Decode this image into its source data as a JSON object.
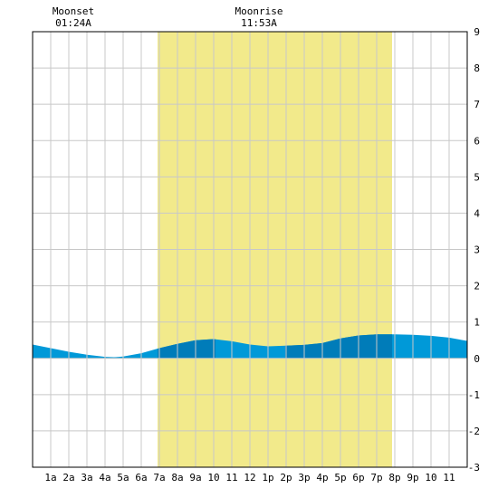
{
  "chart_data": {
    "type": "area",
    "title": "",
    "xlabel": "",
    "ylabel": "",
    "xlim": [
      0,
      24
    ],
    "ylim": [
      -3,
      9
    ],
    "y_ticks": [
      9,
      8,
      7,
      6,
      5,
      4,
      3,
      2,
      1,
      0,
      -1,
      -2,
      -3
    ],
    "x_ticks": [
      {
        "h": 1,
        "label": "1a"
      },
      {
        "h": 2,
        "label": "2a"
      },
      {
        "h": 3,
        "label": "3a"
      },
      {
        "h": 4,
        "label": "4a"
      },
      {
        "h": 5,
        "label": "5a"
      },
      {
        "h": 6,
        "label": "6a"
      },
      {
        "h": 7,
        "label": "7a"
      },
      {
        "h": 8,
        "label": "8a"
      },
      {
        "h": 9,
        "label": "9a"
      },
      {
        "h": 10,
        "label": "10"
      },
      {
        "h": 11,
        "label": "11"
      },
      {
        "h": 12,
        "label": "12"
      },
      {
        "h": 13,
        "label": "1p"
      },
      {
        "h": 14,
        "label": "2p"
      },
      {
        "h": 15,
        "label": "3p"
      },
      {
        "h": 16,
        "label": "4p"
      },
      {
        "h": 17,
        "label": "5p"
      },
      {
        "h": 18,
        "label": "6p"
      },
      {
        "h": 19,
        "label": "7p"
      },
      {
        "h": 20,
        "label": "8p"
      },
      {
        "h": 21,
        "label": "9p"
      },
      {
        "h": 22,
        "label": "10"
      },
      {
        "h": 23,
        "label": "11"
      }
    ],
    "daylight": {
      "start": 6.9,
      "end": 19.85
    },
    "dark_bands": [
      [
        6.9,
        10.1
      ],
      [
        13.95,
        19.85
      ]
    ],
    "grid": true,
    "series": [
      {
        "x": [
          0,
          1,
          2,
          3,
          4,
          4.5,
          5,
          6,
          7,
          8,
          9,
          10,
          11,
          12,
          13,
          14,
          15,
          16,
          17,
          18,
          19,
          20,
          21,
          22,
          23,
          24
        ],
        "y": [
          0.38,
          0.28,
          0.18,
          0.1,
          0.04,
          0.03,
          0.05,
          0.14,
          0.28,
          0.4,
          0.5,
          0.53,
          0.47,
          0.38,
          0.33,
          0.35,
          0.37,
          0.42,
          0.55,
          0.63,
          0.66,
          0.66,
          0.65,
          0.62,
          0.57,
          0.48
        ]
      }
    ],
    "annotations": [
      {
        "h": 2.25,
        "label": "Moonset",
        "time": "01:24A"
      },
      {
        "h": 12.5,
        "label": "Moonrise",
        "time": "11:53A"
      }
    ],
    "colors": {
      "daylight": "#f2ea8b",
      "water": "#0099d8",
      "water_dark": "#007cb9",
      "grid": "#c8c8c8",
      "frame": "#000000"
    }
  }
}
